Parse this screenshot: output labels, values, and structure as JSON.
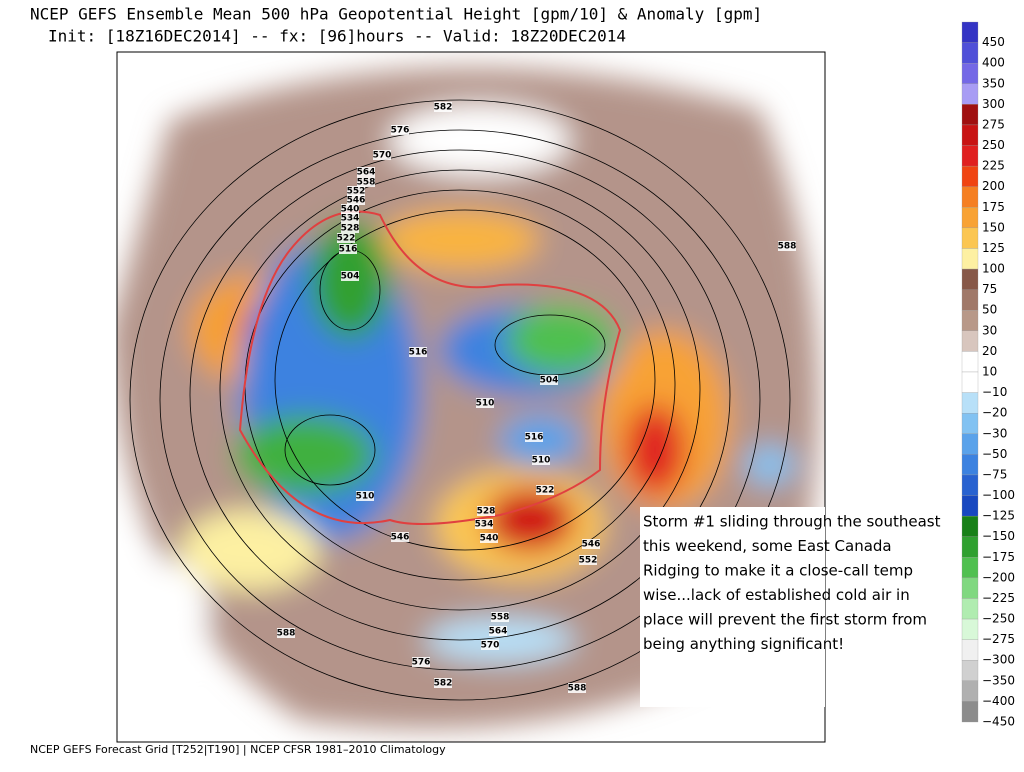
{
  "header": {
    "title": "NCEP GEFS Ensemble Mean 500 hPa Geopotential Height [gpm/10] & Anomaly [gpm]",
    "subtitle": "Init: [18Z16DEC2014] -- fx: [96]hours -- Valid: 18Z20DEC2014"
  },
  "colorbar": [
    {
      "label": "450",
      "color": "#3434c4"
    },
    {
      "label": "400",
      "color": "#5050d8"
    },
    {
      "label": "350",
      "color": "#7468e6"
    },
    {
      "label": "300",
      "color": "#a89cf4"
    },
    {
      "label": "275",
      "color": "#a01010"
    },
    {
      "label": "250",
      "color": "#c81414"
    },
    {
      "label": "225",
      "color": "#e02020"
    },
    {
      "label": "200",
      "color": "#f04412"
    },
    {
      "label": "175",
      "color": "#f57f22"
    },
    {
      "label": "150",
      "color": "#f8a234"
    },
    {
      "label": "125",
      "color": "#fbc652"
    },
    {
      "label": "100",
      "color": "#fdf0a2"
    },
    {
      "label": "75",
      "color": "#875848"
    },
    {
      "label": "50",
      "color": "#a07868"
    },
    {
      "label": "30",
      "color": "#b89888"
    },
    {
      "label": "20",
      "color": "#d8c6be"
    },
    {
      "label": "10",
      "color": "#ffffff"
    },
    {
      "label": "−10",
      "color": "#ffffff"
    },
    {
      "label": "−20",
      "color": "#b8e0f8"
    },
    {
      "label": "−30",
      "color": "#82c2f2"
    },
    {
      "label": "−50",
      "color": "#5aa2ea"
    },
    {
      "label": "−75",
      "color": "#3c82e0"
    },
    {
      "label": "−100",
      "color": "#2862d0"
    },
    {
      "label": "−125",
      "color": "#1848c0"
    },
    {
      "label": "−150",
      "color": "#188018"
    },
    {
      "label": "−175",
      "color": "#30a030"
    },
    {
      "label": "−200",
      "color": "#50c050"
    },
    {
      "label": "−225",
      "color": "#80d880"
    },
    {
      "label": "−250",
      "color": "#b0ecb0"
    },
    {
      "label": "−275",
      "color": "#d8f8d8"
    },
    {
      "label": "−300",
      "color": "#f0f0f0"
    },
    {
      "label": "−350",
      "color": "#d0d0d0"
    },
    {
      "label": "−400",
      "color": "#b0b0b0"
    },
    {
      "label": "−450",
      "color": "#8c8c8c"
    }
  ],
  "contour_labels": [
    "582",
    "576",
    "570",
    "564",
    "558",
    "552",
    "546",
    "540",
    "534",
    "528",
    "522",
    "516",
    "504",
    "588",
    "516",
    "510",
    "504",
    "516",
    "510",
    "522",
    "510",
    "528",
    "534",
    "540",
    "546",
    "552",
    "558",
    "564",
    "570",
    "576",
    "582",
    "588",
    "546",
    "588"
  ],
  "annotation": [
    "Storm #1 sliding through the southeast",
    "this weekend, some East Canada",
    "Ridging to make it a close-call temp",
    "wise...lack of established cold air in",
    "place will prevent the first storm from",
    "being anything significant!"
  ],
  "footer": "NCEP GEFS Forecast Grid [T252|T190] | NCEP CFSR 1981–2010 Climatology"
}
